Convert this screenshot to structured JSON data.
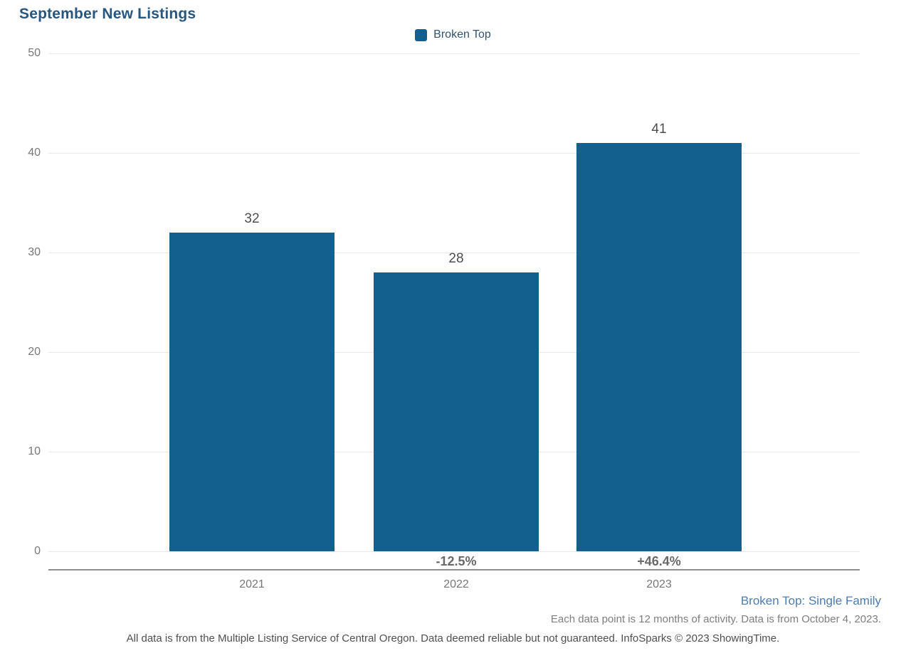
{
  "title": "September New Listings",
  "legend": {
    "label": "Broken Top"
  },
  "colors": {
    "bar": "#13608f",
    "title_text": "#27567f",
    "series_note_text": "#4d7cb0"
  },
  "chart_data": {
    "type": "bar",
    "title": "September New Listings",
    "categories": [
      "2021",
      "2022",
      "2023"
    ],
    "values": [
      32,
      28,
      41
    ],
    "value_labels": [
      "32",
      "28",
      "41"
    ],
    "pct_change_labels": [
      "",
      "-12.5%",
      "+46.4%"
    ],
    "series": [
      {
        "name": "Broken Top",
        "values": [
          32,
          28,
          41
        ]
      }
    ],
    "xlabel": "",
    "ylabel": "",
    "ylim": [
      0,
      50
    ],
    "yticks": [
      0,
      10,
      20,
      30,
      40,
      50
    ],
    "grid": true,
    "legend_position": "top-center"
  },
  "footer": {
    "series_note": "Broken Top: Single Family",
    "data_note": "Each data point is 12 months of activity. Data is from October 4, 2023.",
    "disclaimer": "All data is from the Multiple Listing Service of Central Oregon. Data deemed reliable but not guaranteed. InfoSparks © 2023 ShowingTime."
  }
}
